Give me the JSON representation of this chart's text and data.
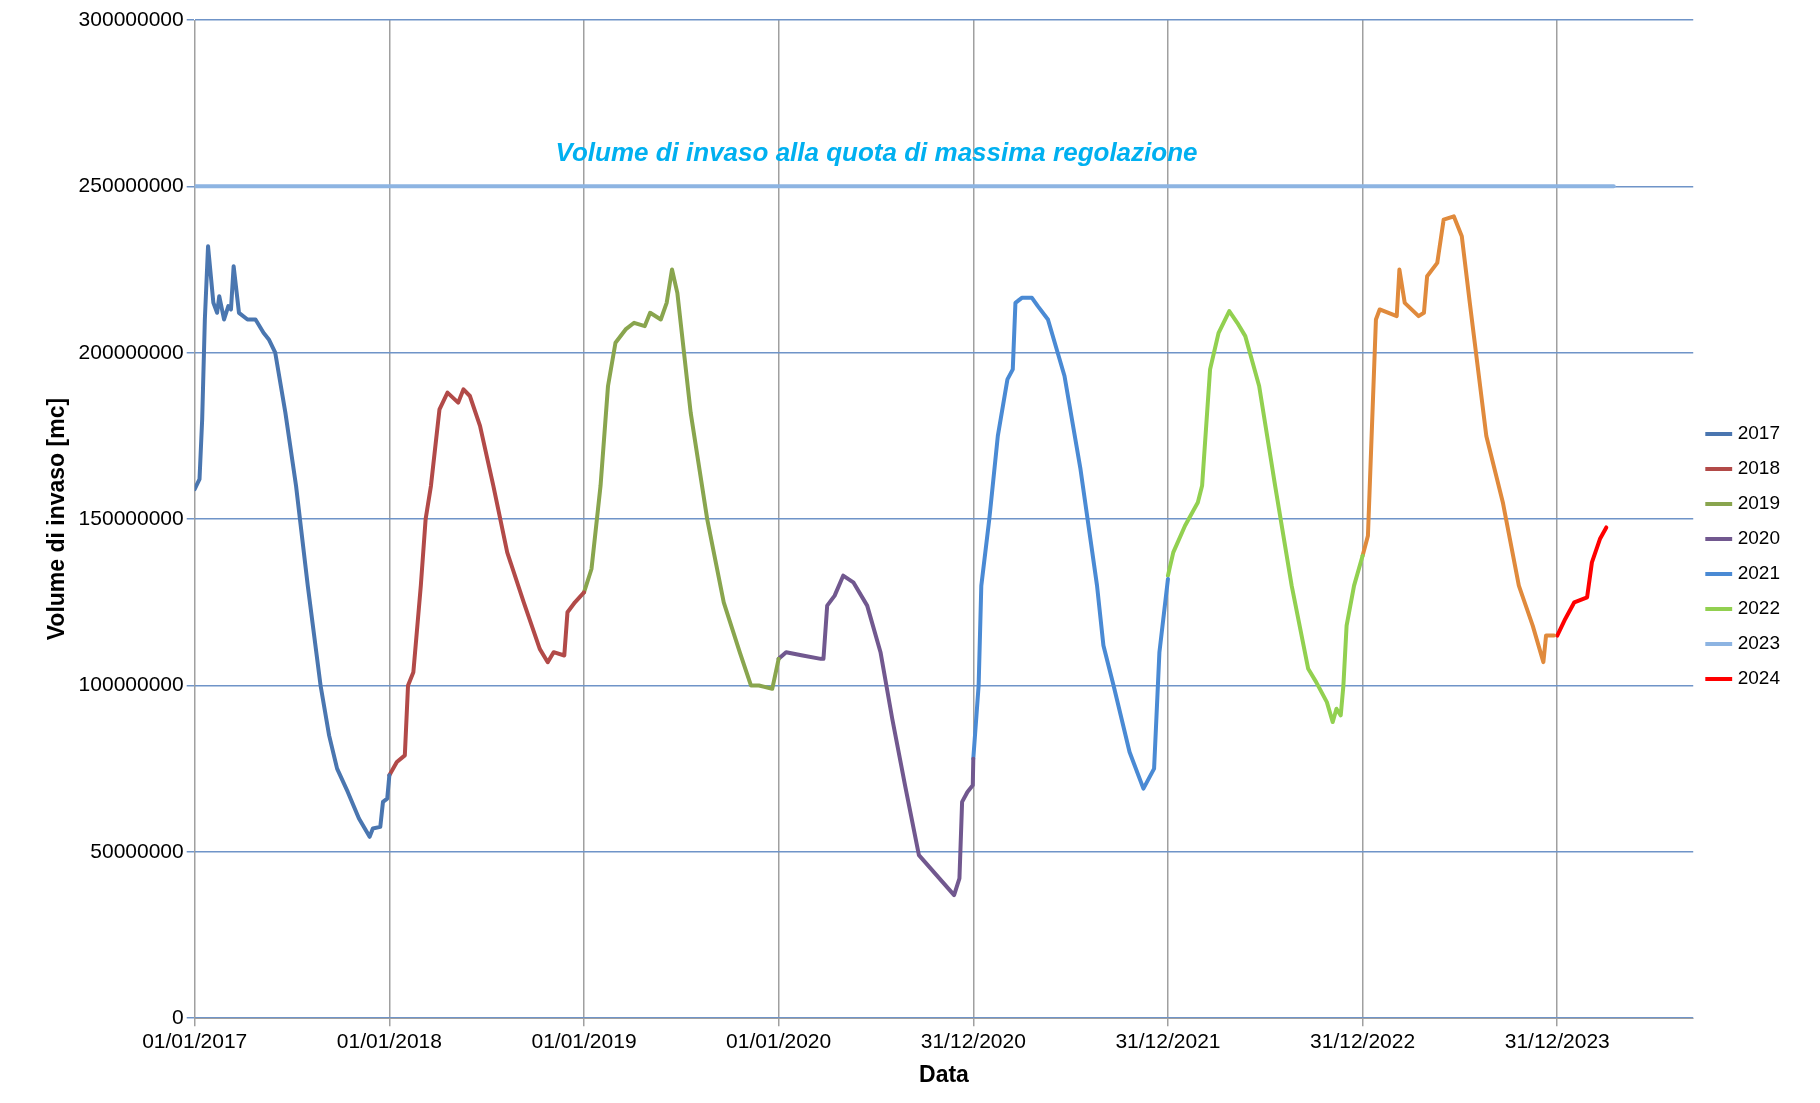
{
  "chart_data": {
    "type": "line",
    "xlabel": "Data",
    "ylabel": "Volume di invaso [mc]",
    "xlim": [
      "2017-01-01",
      "2024-09-11"
    ],
    "xticks": [
      {
        "value": "2017-01-01",
        "label": "01/01/2017"
      },
      {
        "value": "2018-01-01",
        "label": "01/01/2018"
      },
      {
        "value": "2019-01-01",
        "label": "01/01/2019"
      },
      {
        "value": "2020-01-01",
        "label": "01/01/2020"
      },
      {
        "value": "2020-12-31",
        "label": "31/12/2020"
      },
      {
        "value": "2021-12-31",
        "label": "31/12/2021"
      },
      {
        "value": "2022-12-31",
        "label": "31/12/2022"
      },
      {
        "value": "2023-12-31",
        "label": "31/12/2023"
      }
    ],
    "ylim": [
      0,
      300000000
    ],
    "yticks": [
      0,
      50000000,
      100000000,
      150000000,
      200000000,
      250000000,
      300000000
    ],
    "grid": true,
    "legend": "right",
    "marker": "none",
    "line_style": "solid",
    "annotations": [
      "Volume di invaso alla quota di massima regolazione"
    ],
    "series": [
      {
        "name": "2017",
        "color": "#4a76b0",
        "x": [
          "2017-01-01",
          "2017-01-10",
          "2017-01-15",
          "2017-01-20",
          "2017-01-26",
          "2017-02-05",
          "2017-02-12",
          "2017-02-16",
          "2017-02-25",
          "2017-03-05",
          "2017-03-10",
          "2017-03-15",
          "2017-03-25",
          "2017-04-10",
          "2017-04-25",
          "2017-05-10",
          "2017-05-20",
          "2017-06-01",
          "2017-06-20",
          "2017-07-10",
          "2017-08-01",
          "2017-08-25",
          "2017-09-10",
          "2017-09-25",
          "2017-10-15",
          "2017-11-05",
          "2017-11-25",
          "2017-12-01",
          "2017-12-15",
          "2017-12-20",
          "2017-12-28",
          "2018-01-01"
        ],
        "values": [
          159000000,
          162000000,
          180000000,
          210000000,
          232000000,
          215000000,
          212000000,
          217000000,
          210000000,
          214000000,
          213000000,
          226000000,
          212000000,
          210000000,
          210000000,
          206000000,
          204000000,
          200000000,
          182000000,
          160000000,
          130000000,
          100000000,
          85000000,
          75000000,
          68000000,
          60000000,
          54500000,
          57000000,
          57500000,
          65000000,
          66000000,
          73000000
        ]
      },
      {
        "name": "2018",
        "color": "#b24a48",
        "x": [
          "2018-01-01",
          "2018-01-15",
          "2018-01-30",
          "2018-02-05",
          "2018-02-15",
          "2018-03-01",
          "2018-03-10",
          "2018-03-20",
          "2018-04-05",
          "2018-04-20",
          "2018-05-10",
          "2018-05-20",
          "2018-06-01",
          "2018-06-20",
          "2018-07-15",
          "2018-08-10",
          "2018-09-10",
          "2018-10-10",
          "2018-10-25",
          "2018-11-05",
          "2018-11-25",
          "2018-12-01",
          "2018-12-15",
          "2019-01-01"
        ],
        "values": [
          73000000,
          77000000,
          79000000,
          100000000,
          104000000,
          130000000,
          150000000,
          160000000,
          183000000,
          188000000,
          185000000,
          189000000,
          187000000,
          178000000,
          160000000,
          140000000,
          125000000,
          111000000,
          107000000,
          110000000,
          109000000,
          122000000,
          125000000,
          128000000
        ]
      },
      {
        "name": "2019",
        "color": "#89a54e",
        "x": [
          "2019-01-01",
          "2019-01-15",
          "2019-02-01",
          "2019-02-15",
          "2019-03-01",
          "2019-03-20",
          "2019-04-05",
          "2019-04-25",
          "2019-05-05",
          "2019-05-25",
          "2019-06-05",
          "2019-06-15",
          "2019-06-25",
          "2019-07-20",
          "2019-08-20",
          "2019-09-20",
          "2019-10-20",
          "2019-11-10",
          "2019-11-25",
          "2019-12-20",
          "2020-01-01"
        ],
        "values": [
          128000000,
          135000000,
          160000000,
          190000000,
          203000000,
          207000000,
          209000000,
          208000000,
          212000000,
          210000000,
          215000000,
          225000000,
          218000000,
          182000000,
          150000000,
          125000000,
          110000000,
          100000000,
          100000000,
          99000000,
          108000000
        ]
      },
      {
        "name": "2020",
        "color": "#71588f",
        "x": [
          "2020-01-01",
          "2020-01-15",
          "2020-02-15",
          "2020-03-20",
          "2020-03-25",
          "2020-04-01",
          "2020-04-15",
          "2020-05-01",
          "2020-05-20",
          "2020-06-15",
          "2020-07-10",
          "2020-08-01",
          "2020-08-25",
          "2020-09-20",
          "2020-11-25",
          "2020-12-05",
          "2020-12-10",
          "2020-12-20",
          "2020-12-30",
          "2020-12-31"
        ],
        "values": [
          108000000,
          110000000,
          109000000,
          108000000,
          108000000,
          124000000,
          127000000,
          133000000,
          131000000,
          124000000,
          110000000,
          90000000,
          70000000,
          49000000,
          37000000,
          42000000,
          65000000,
          68000000,
          70000000,
          78000000
        ]
      },
      {
        "name": "2021",
        "color": "#4a8ad4",
        "x": [
          "2020-12-31",
          "2021-01-10",
          "2021-01-15",
          "2021-01-30",
          "2021-02-15",
          "2021-03-05",
          "2021-03-15",
          "2021-03-20",
          "2021-04-01",
          "2021-04-20",
          "2021-05-01",
          "2021-05-20",
          "2021-06-20",
          "2021-07-20",
          "2021-08-20",
          "2021-09-01",
          "2021-09-20",
          "2021-10-20",
          "2021-11-15",
          "2021-11-25",
          "2021-12-05",
          "2021-12-15",
          "2021-12-31"
        ],
        "values": [
          78000000,
          100000000,
          130000000,
          150000000,
          175000000,
          192000000,
          195000000,
          215000000,
          216500000,
          216500000,
          214000000,
          210000000,
          193000000,
          165000000,
          130000000,
          112000000,
          100000000,
          80000000,
          69000000,
          72000000,
          75000000,
          110000000,
          132000000
        ]
      },
      {
        "name": "2022",
        "color": "#92d050",
        "x": [
          "2021-12-31",
          "2022-01-10",
          "2022-02-01",
          "2022-02-25",
          "2022-03-05",
          "2022-03-20",
          "2022-04-05",
          "2022-04-25",
          "2022-05-10",
          "2022-05-25",
          "2022-06-20",
          "2022-07-20",
          "2022-08-20",
          "2022-09-20",
          "2022-10-05",
          "2022-10-25",
          "2022-11-05",
          "2022-11-12",
          "2022-11-20",
          "2022-11-25",
          "2022-12-01",
          "2022-12-15",
          "2022-12-31"
        ],
        "values": [
          133000000,
          140000000,
          148000000,
          155000000,
          160000000,
          195000000,
          206000000,
          212500000,
          209000000,
          205000000,
          190000000,
          160000000,
          130000000,
          105000000,
          101000000,
          95000000,
          89000000,
          93000000,
          91000000,
          100000000,
          118000000,
          130000000,
          139000000
        ]
      },
      {
        "name": "2023",
        "color": "#8db4e2",
        "x": [
          "2017-01-01",
          "2024-04-15"
        ],
        "values": [
          250000000,
          250000000
        ]
      },
      {
        "color": "#e08a3c",
        "x": [
          "2022-12-31",
          "2023-01-10",
          "2023-01-25",
          "2023-02-01",
          "2023-03-05",
          "2023-03-10",
          "2023-03-20",
          "2023-04-15",
          "2023-04-25",
          "2023-05-01",
          "2023-05-20",
          "2023-06-01",
          "2023-06-20",
          "2023-07-05",
          "2023-07-20",
          "2023-08-20",
          "2023-09-20",
          "2023-10-20",
          "2023-11-15",
          "2023-12-05",
          "2023-12-10",
          "2023-12-25"
        ],
        "values": [
          139000000,
          145000000,
          210000000,
          213000000,
          211000000,
          225000000,
          215000000,
          211000000,
          212000000,
          223000000,
          227000000,
          240000000,
          241000000,
          235000000,
          215000000,
          175000000,
          155000000,
          130000000,
          118000000,
          107000000,
          115000000,
          115000000
        ]
      },
      {
        "name": "2024",
        "color": "#ff0000",
        "x": [
          "2023-12-31",
          "2024-01-15",
          "2024-02-01",
          "2024-02-25",
          "2024-03-05",
          "2024-03-20",
          "2024-04-01"
        ],
        "values": [
          115000000,
          120000000,
          125000000,
          126500000,
          137000000,
          144000000,
          147500000
        ]
      }
    ]
  }
}
